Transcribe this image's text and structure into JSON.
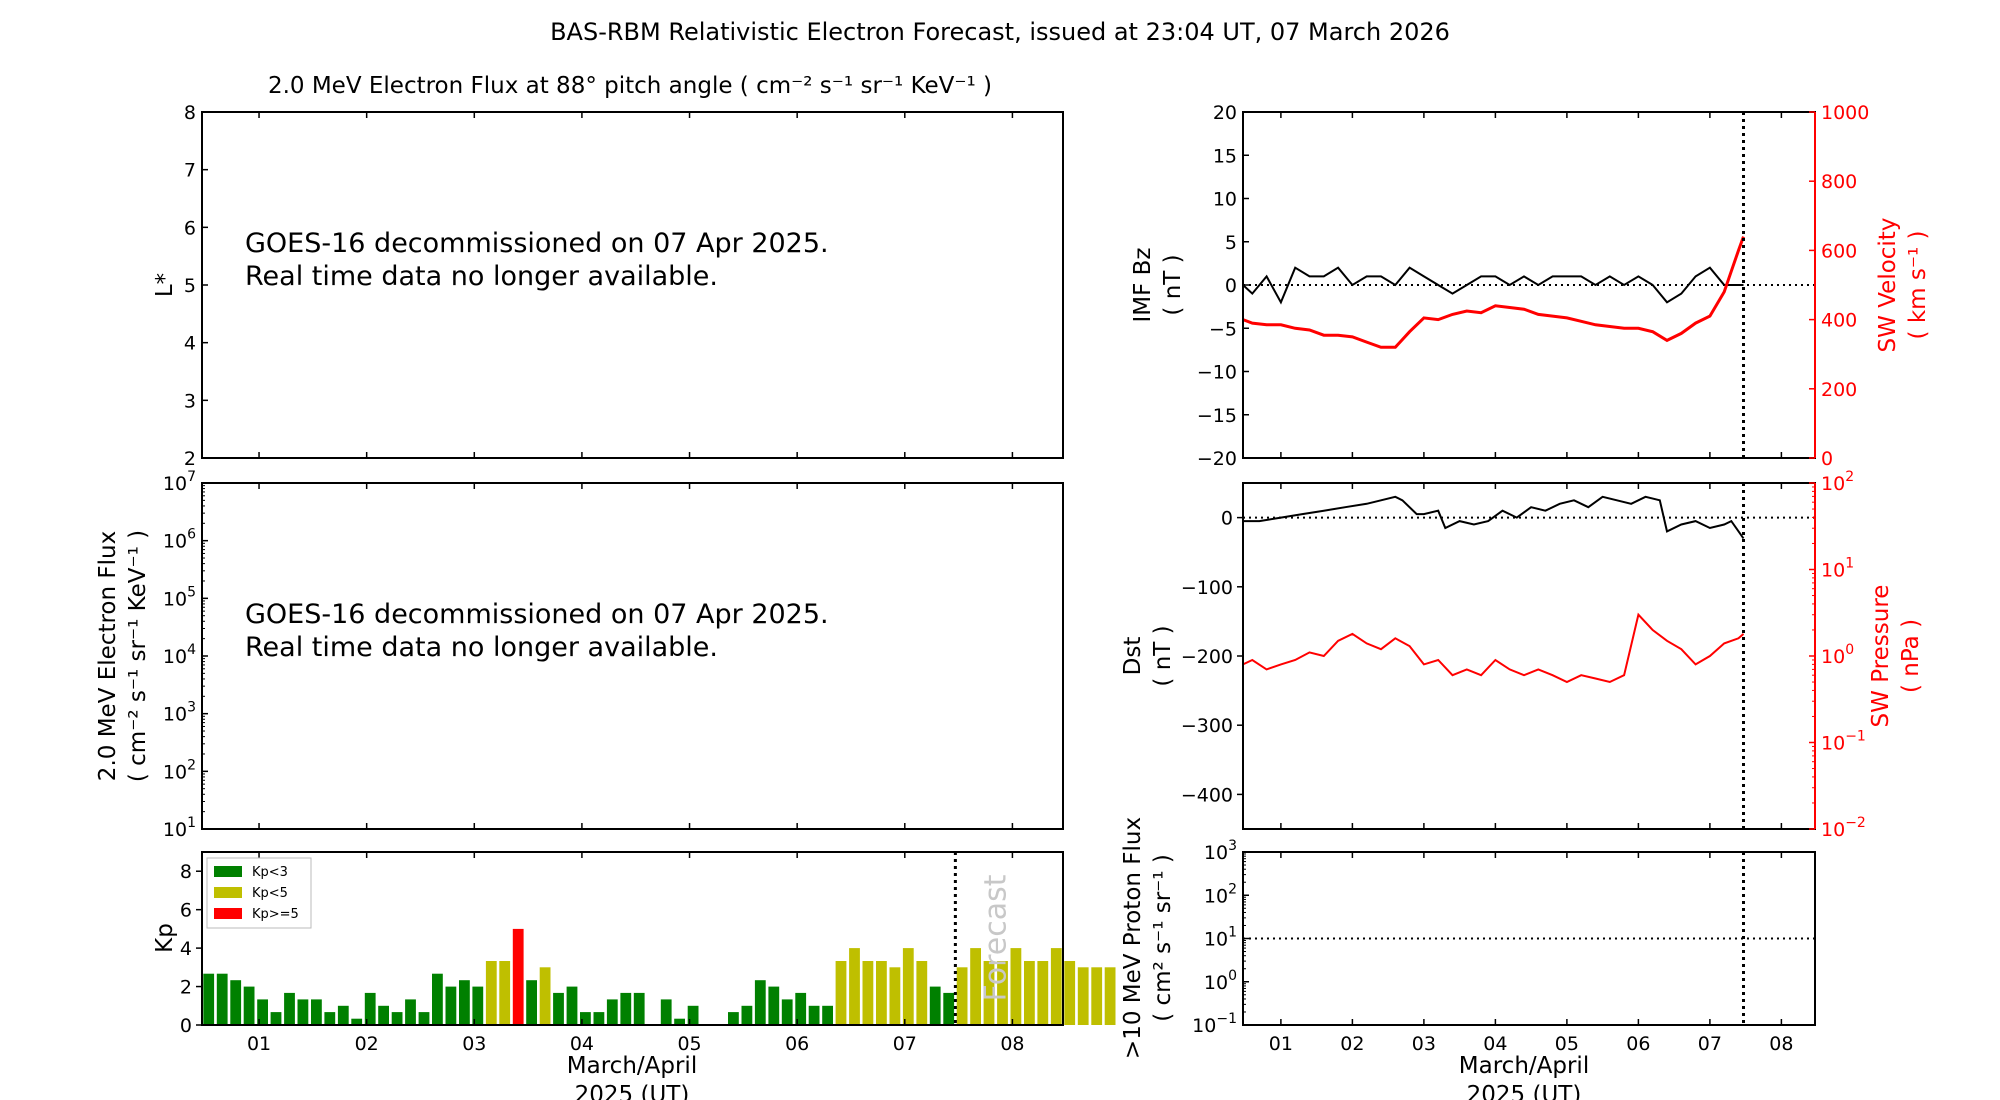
{
  "title": "BAS-RBM Relativistic Electron Forecast, issued at 23:04 UT, 07 March 2026",
  "colors": {
    "kp_low": "#008000",
    "kp_mid": "#bfbf00",
    "kp_high": "#ff0000",
    "sw": "#ff0000",
    "line": "#000000"
  },
  "date_ticks": [
    "01",
    "02",
    "03",
    "04",
    "05",
    "06",
    "07",
    "08"
  ],
  "x_label_line1": "March/April",
  "x_label_line2": "2025 (UT)",
  "chart_data": [
    {
      "id": "lstar",
      "type": "heatmap",
      "title": "2.0 MeV Electron Flux at 88° pitch angle ( cm⁻² s⁻¹ sr⁻¹ KeV⁻¹ )",
      "ylabel": "L*",
      "ylim": [
        2,
        8
      ],
      "yticks": [
        "2",
        "3",
        "4",
        "5",
        "6",
        "7",
        "8"
      ],
      "note": [
        "GOES-16 decommissioned on 07 Apr 2025.",
        "Real time data no longer available."
      ]
    },
    {
      "id": "flux",
      "type": "line",
      "ylabel": "2.0 MeV Electron Flux",
      "ylabel_units": "( cm⁻² s⁻¹ sr⁻¹ KeV⁻¹ )",
      "ylim": [
        10,
        10000000
      ],
      "yscale": "log",
      "ytick_exponents": [
        "1",
        "2",
        "3",
        "4",
        "5",
        "6",
        "7"
      ],
      "note": [
        "GOES-16 decommissioned on 07 Apr 2025.",
        "Real time data no longer available."
      ]
    },
    {
      "id": "kp",
      "type": "bar",
      "ylabel": "Kp",
      "ylim": [
        0,
        9
      ],
      "yticks": [
        "0",
        "2",
        "4",
        "6",
        "8"
      ],
      "legend": [
        {
          "label": "Kp<3",
          "color": "#008000"
        },
        {
          "label": "Kp<5",
          "color": "#bfbf00"
        },
        {
          "label": "Kp>=5",
          "color": "#ff0000"
        }
      ],
      "legend_position": "top-left",
      "forecast_label": "Forecast",
      "forecast_start_day": 7.47,
      "bar_day_start": 0.47,
      "bar_width_days": 0.125,
      "values": [
        2.67,
        2.67,
        2.33,
        2.0,
        1.33,
        0.67,
        1.67,
        1.33,
        1.33,
        0.67,
        1.0,
        0.33,
        1.67,
        1.0,
        0.67,
        1.33,
        0.67,
        2.67,
        2.0,
        2.33,
        2.0,
        3.33,
        3.33,
        5.0,
        2.33,
        3.0,
        1.67,
        2.0,
        0.67,
        0.67,
        1.33,
        1.67,
        1.67,
        0.0,
        1.33,
        0.33,
        1.0,
        0.0,
        0.0,
        0.67,
        1.0,
        2.33,
        2.0,
        1.33,
        1.67,
        1.0,
        1.0,
        3.33,
        4.0,
        3.33,
        3.33,
        3.0,
        4.0,
        3.33,
        2.0,
        1.67,
        3.0,
        4.0,
        3.33,
        3.33,
        4.0,
        3.33,
        3.33,
        4.0,
        3.33,
        3.0,
        3.0,
        3.0
      ]
    },
    {
      "id": "imf",
      "type": "line",
      "ylabel": "IMF Bz",
      "ylabel_units": "( nT )",
      "ylim": [
        -20,
        20
      ],
      "yticks": [
        "−20",
        "−15",
        "−10",
        "−5",
        "0",
        "5",
        "10",
        "15",
        "20"
      ],
      "y2label": "SW Velocity",
      "y2label_units": "( km s⁻¹ )",
      "y2lim": [
        0,
        1000
      ],
      "y2ticks": [
        "0",
        "200",
        "400",
        "600",
        "800",
        "1000"
      ],
      "now_day": 7.47,
      "series": [
        {
          "axis": "left",
          "color": "#000000",
          "x": [
            0.47,
            0.6,
            0.8,
            1.0,
            1.2,
            1.4,
            1.6,
            1.8,
            2.0,
            2.2,
            2.4,
            2.6,
            2.8,
            3.0,
            3.2,
            3.4,
            3.6,
            3.8,
            4.0,
            4.2,
            4.4,
            4.6,
            4.8,
            5.0,
            5.2,
            5.4,
            5.6,
            5.8,
            6.0,
            6.2,
            6.4,
            6.6,
            6.8,
            7.0,
            7.2,
            7.47
          ],
          "y": [
            0,
            -1,
            1,
            -2,
            2,
            1,
            1,
            2,
            0,
            1,
            1,
            0,
            2,
            1,
            0,
            -1,
            0,
            1,
            1,
            0,
            1,
            0,
            1,
            1,
            1,
            0,
            1,
            0,
            1,
            0,
            -2,
            -1,
            1,
            2,
            0,
            0
          ]
        },
        {
          "axis": "right",
          "color": "#ff0000",
          "x": [
            0.47,
            0.6,
            0.8,
            1.0,
            1.2,
            1.4,
            1.6,
            1.8,
            2.0,
            2.2,
            2.4,
            2.6,
            2.8,
            3.0,
            3.2,
            3.4,
            3.6,
            3.8,
            4.0,
            4.2,
            4.4,
            4.6,
            4.8,
            5.0,
            5.2,
            5.4,
            5.6,
            5.8,
            6.0,
            6.2,
            6.4,
            6.6,
            6.8,
            7.0,
            7.2,
            7.3,
            7.4,
            7.47
          ],
          "y": [
            400,
            390,
            385,
            385,
            375,
            370,
            355,
            355,
            350,
            335,
            320,
            320,
            365,
            405,
            400,
            415,
            425,
            420,
            440,
            435,
            430,
            415,
            410,
            405,
            395,
            385,
            380,
            375,
            375,
            365,
            340,
            360,
            390,
            410,
            480,
            540,
            600,
            640
          ]
        }
      ]
    },
    {
      "id": "dst",
      "type": "line",
      "ylabel": "Dst",
      "ylabel_units": "( nT )",
      "ylim": [
        -450,
        50
      ],
      "yticks": [
        "−400",
        "−300",
        "−200",
        "−100",
        "0"
      ],
      "y2label": "SW Pressure",
      "y2label_units": "( nPa )",
      "y2lim": [
        0.01,
        100
      ],
      "y2scale": "log",
      "y2tick_exponents": [
        "−2",
        "−1",
        "0",
        "1",
        "2"
      ],
      "now_day": 7.47,
      "series": [
        {
          "axis": "left",
          "color": "#000000",
          "x": [
            0.47,
            0.7,
            1.0,
            1.3,
            1.6,
            1.9,
            2.2,
            2.4,
            2.6,
            2.7,
            2.9,
            3.0,
            3.2,
            3.3,
            3.5,
            3.7,
            3.9,
            4.1,
            4.3,
            4.5,
            4.7,
            4.9,
            5.1,
            5.3,
            5.5,
            5.7,
            5.9,
            6.1,
            6.3,
            6.4,
            6.6,
            6.8,
            7.0,
            7.2,
            7.3,
            7.47
          ],
          "y": [
            -5,
            -5,
            0,
            5,
            10,
            15,
            20,
            25,
            30,
            25,
            5,
            5,
            10,
            -15,
            -5,
            -10,
            -5,
            10,
            0,
            15,
            10,
            20,
            25,
            15,
            30,
            25,
            20,
            30,
            25,
            -20,
            -10,
            -5,
            -15,
            -10,
            -5,
            -30
          ]
        },
        {
          "axis": "right",
          "color": "#ff0000",
          "x": [
            0.47,
            0.6,
            0.8,
            1.0,
            1.2,
            1.4,
            1.6,
            1.8,
            2.0,
            2.2,
            2.4,
            2.6,
            2.8,
            3.0,
            3.2,
            3.4,
            3.6,
            3.8,
            4.0,
            4.2,
            4.4,
            4.6,
            4.8,
            5.0,
            5.2,
            5.4,
            5.6,
            5.8,
            6.0,
            6.2,
            6.4,
            6.6,
            6.8,
            7.0,
            7.2,
            7.4,
            7.47
          ],
          "y": [
            0.8,
            0.9,
            0.7,
            0.8,
            0.9,
            1.1,
            1.0,
            1.5,
            1.8,
            1.4,
            1.2,
            1.6,
            1.3,
            0.8,
            0.9,
            0.6,
            0.7,
            0.6,
            0.9,
            0.7,
            0.6,
            0.7,
            0.6,
            0.5,
            0.6,
            0.55,
            0.5,
            0.6,
            3.0,
            2.0,
            1.5,
            1.2,
            0.8,
            1.0,
            1.4,
            1.6,
            1.8
          ]
        }
      ]
    },
    {
      "id": "proton",
      "type": "line",
      "ylabel": ">10 MeV Proton Flux",
      "ylabel_units": "( cm² s⁻¹ sr⁻¹ )",
      "ylim": [
        0.1,
        1000
      ],
      "yscale": "log",
      "ytick_exponents": [
        "−1",
        "0",
        "1",
        "2",
        "3"
      ],
      "threshold": 10,
      "now_day": 7.47
    }
  ]
}
